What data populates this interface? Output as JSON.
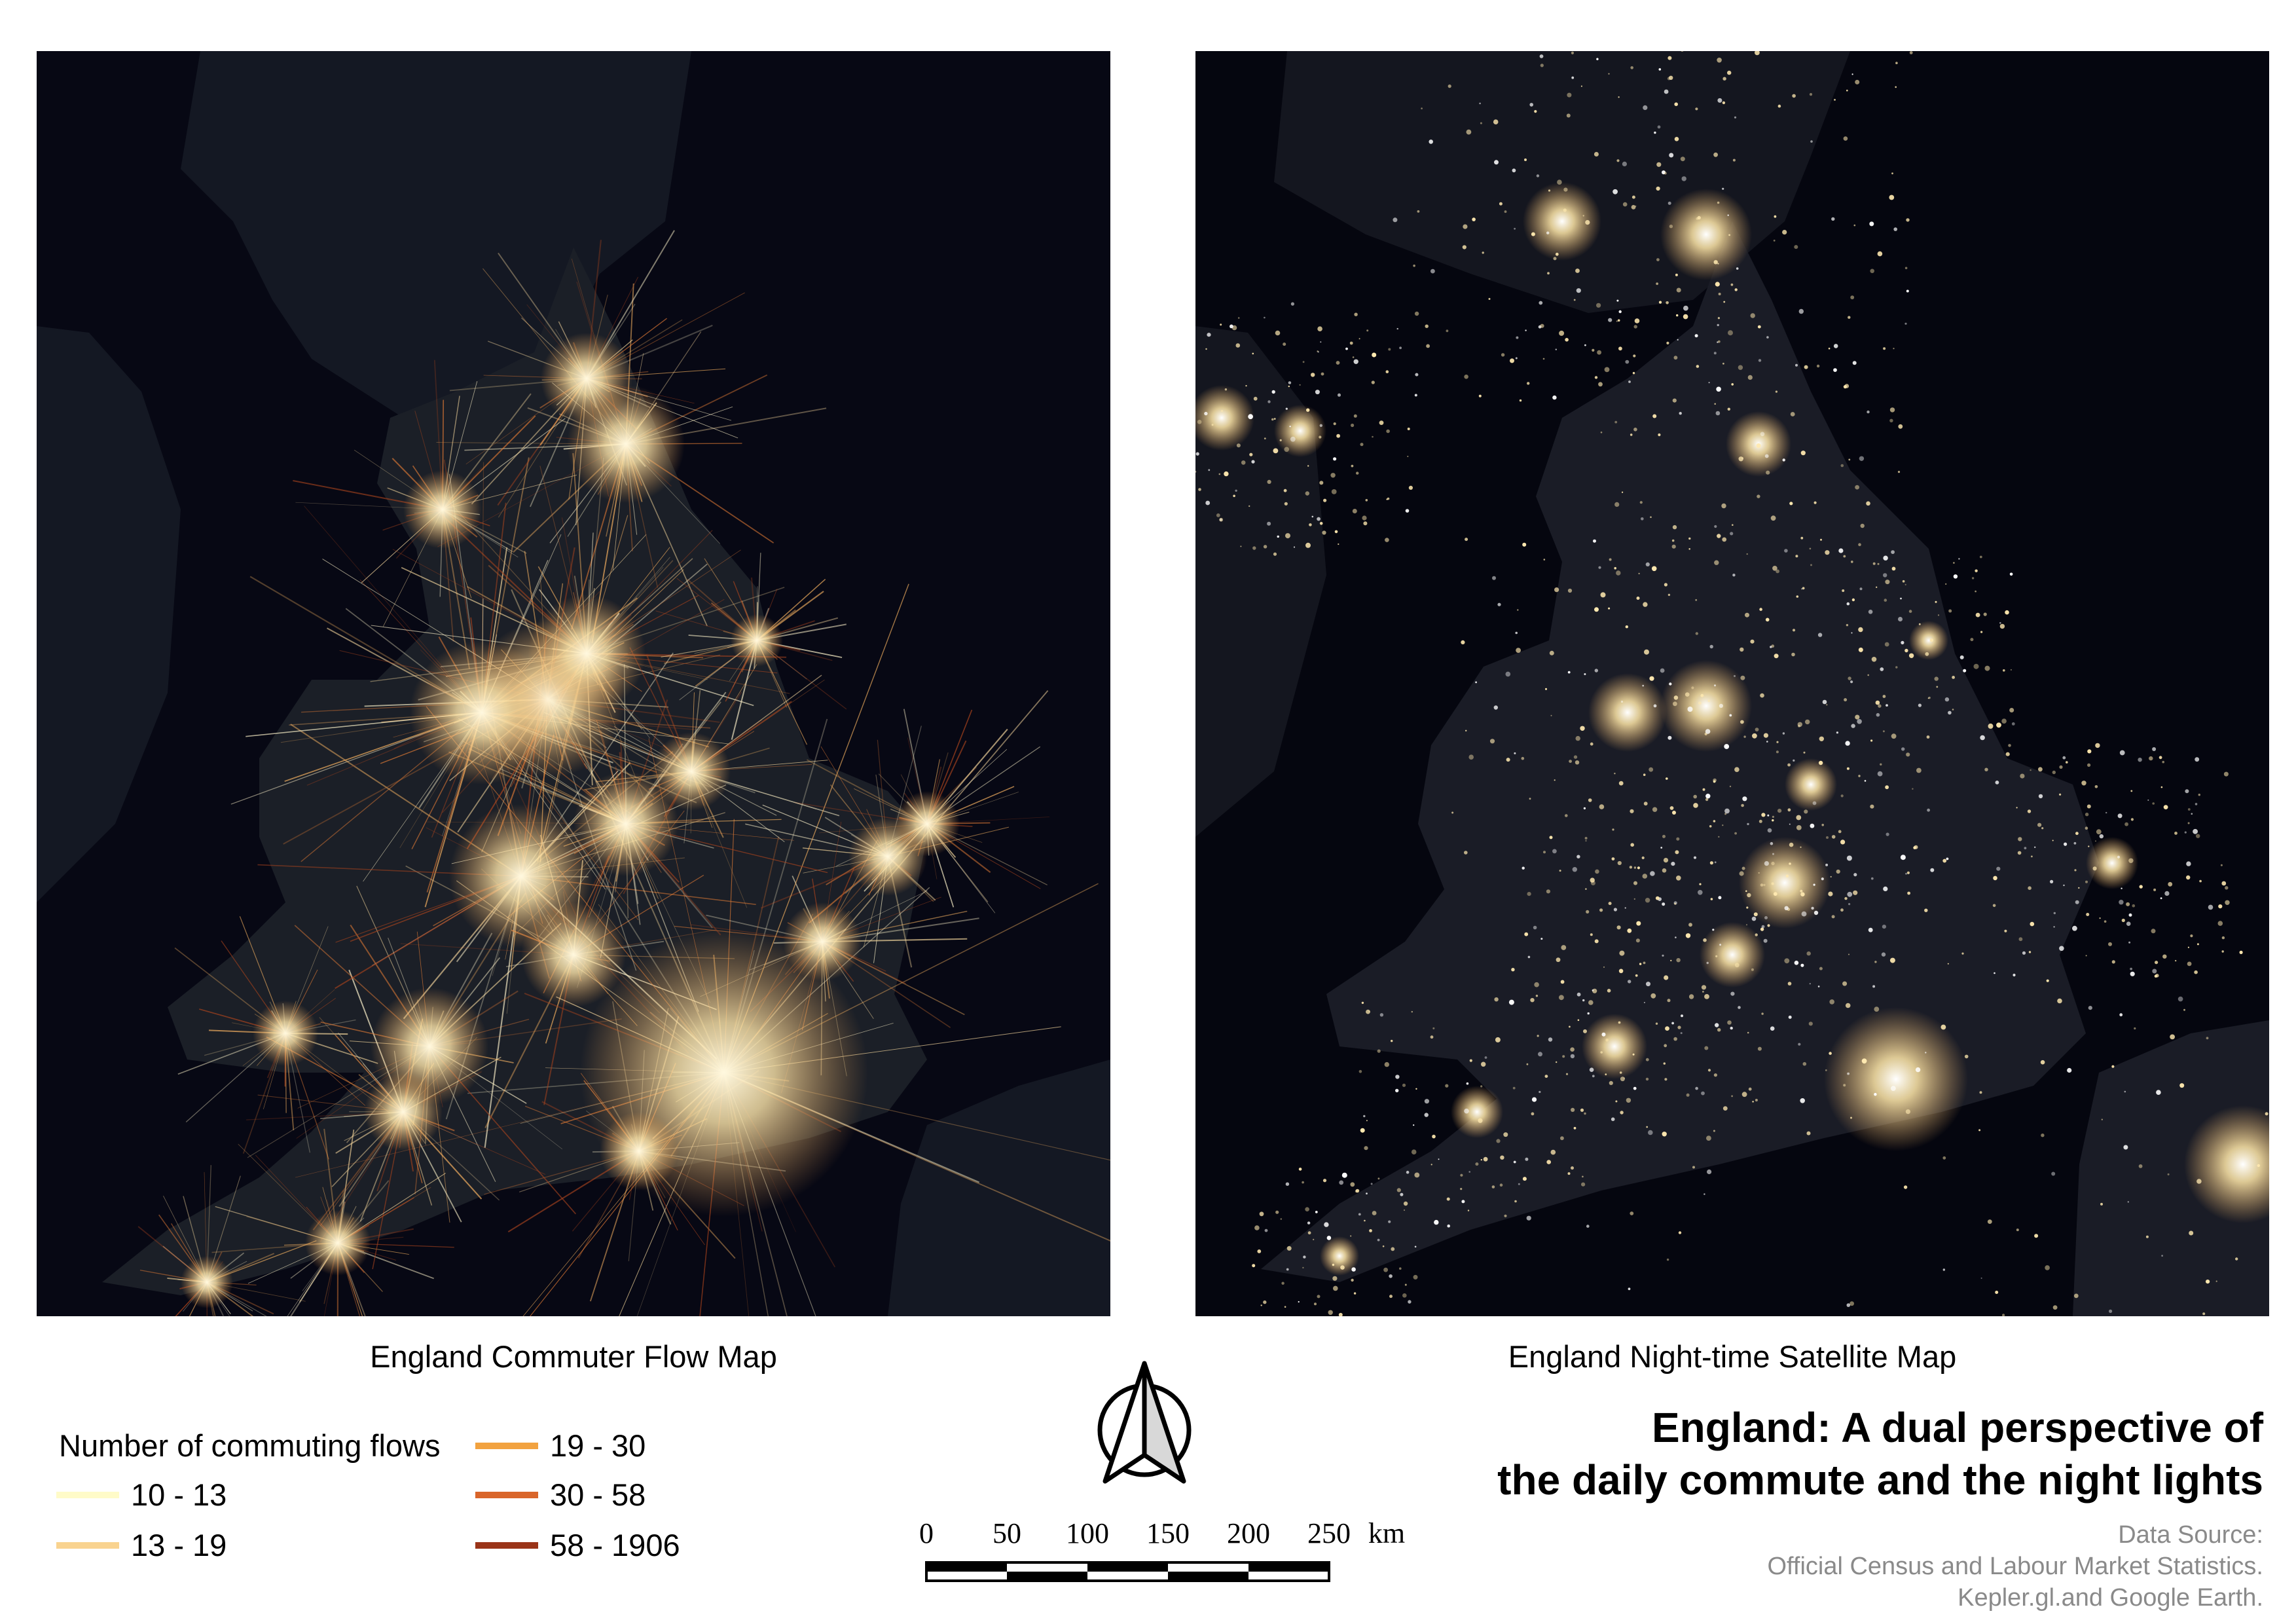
{
  "maps": {
    "left_caption": "England Commuter Flow Map",
    "right_caption": "England Night-time Satellite Map"
  },
  "legend": {
    "title": "Number of commuting flows",
    "items": [
      {
        "label": "10 - 13",
        "color": "#fffbc8"
      },
      {
        "label": "13 - 19",
        "color": "#f9d38f"
      },
      {
        "label": "19 - 30",
        "color": "#f2a23f"
      },
      {
        "label": "30 - 58",
        "color": "#d9652a"
      },
      {
        "label": "58 - 1906",
        "color": "#9a3418"
      }
    ]
  },
  "scale": {
    "ticks": [
      "0",
      "50",
      "100",
      "150",
      "200",
      "250"
    ],
    "unit": "km"
  },
  "title": {
    "line1": "England: A dual perspective of",
    "line2": "the daily commute and the night lights"
  },
  "source": {
    "line1": "Data Source:",
    "line2": "Official Census and Labour Market Statistics.",
    "line3": "Kepler.gl.and Google Earth."
  },
  "colors": {
    "map_background": "#070814",
    "land_dark": "#161a24",
    "flow_glow": "#fff1c8",
    "city_light": "#ffe9b0"
  }
}
